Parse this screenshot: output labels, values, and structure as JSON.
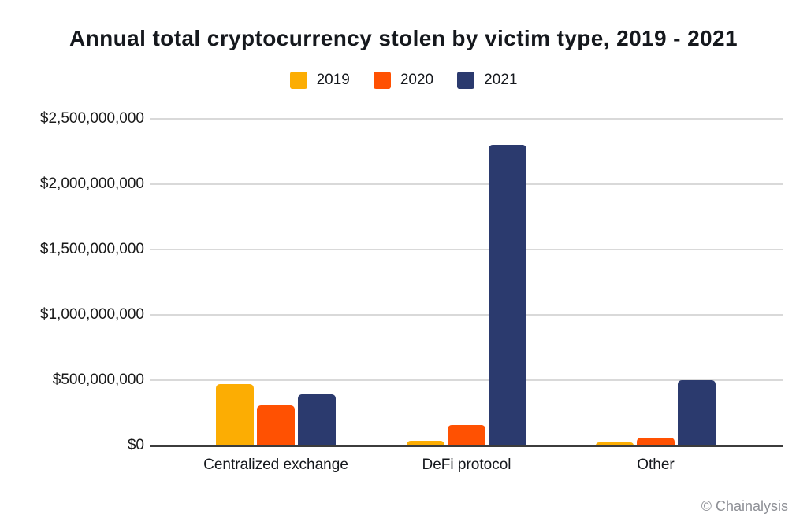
{
  "chart": {
    "title": "Annual total cryptocurrency stolen by victim type, 2019 - 2021",
    "attribution": "© Chainalysis"
  },
  "colors": {
    "year_2019": "#FCAD03",
    "year_2020": "#FF5102",
    "year_2021": "#2B3A6E",
    "gridline": "#D9D9D9",
    "axis": "#3C3C3C",
    "title_text": "#15181D",
    "attribution_text": "#8F9197"
  },
  "chart_data": {
    "type": "bar",
    "title": "Annual total cryptocurrency stolen by victim type, 2019 - 2021",
    "categories": [
      "Centralized exchange",
      "DeFi protocol",
      "Other"
    ],
    "series": [
      {
        "name": "2019",
        "color": "#FCAD03",
        "values": [
          470000000,
          35000000,
          25000000
        ]
      },
      {
        "name": "2020",
        "color": "#FF5102",
        "values": [
          305000000,
          155000000,
          60000000
        ]
      },
      {
        "name": "2021",
        "color": "#2B3A6E",
        "values": [
          390000000,
          2300000000,
          500000000
        ]
      }
    ],
    "xlabel": "",
    "ylabel": "",
    "ylim": [
      0,
      2500000000
    ],
    "y_ticks": [
      {
        "value": 0,
        "label": "$0"
      },
      {
        "value": 500000000,
        "label": "$500,000,000"
      },
      {
        "value": 1000000000,
        "label": "$1,000,000,000"
      },
      {
        "value": 1500000000,
        "label": "$1,500,000,000"
      },
      {
        "value": 2000000000,
        "label": "$2,000,000,000"
      },
      {
        "value": 2500000000,
        "label": "$2,500,000,000"
      }
    ],
    "grid": true,
    "legend_position": "top-center",
    "attribution": "© Chainalysis"
  }
}
